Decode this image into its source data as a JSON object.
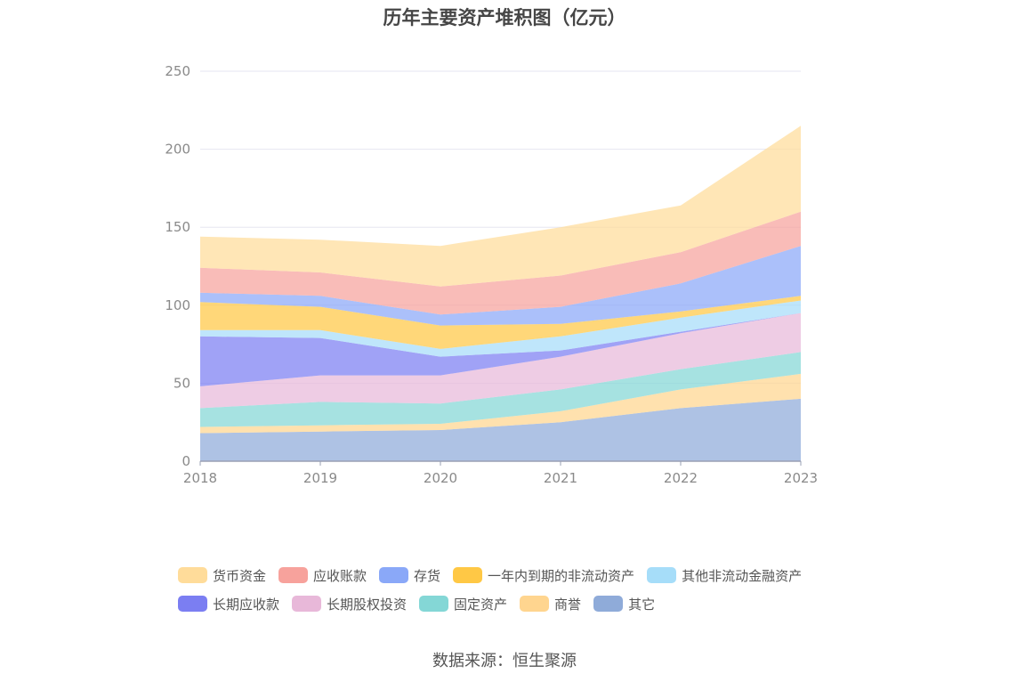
{
  "title": "历年主要资产堆积图（亿元）",
  "source": "数据来源：恒生聚源",
  "chart_data": {
    "type": "area",
    "stacked": true,
    "x": [
      "2018",
      "2019",
      "2020",
      "2021",
      "2022",
      "2023"
    ],
    "ylim": [
      0,
      250
    ],
    "yticks": [
      0,
      50,
      100,
      150,
      200,
      250
    ],
    "grid": true,
    "legend_position": "bottom",
    "series": [
      {
        "name": "其它",
        "color": "#8fabd9",
        "values": [
          18,
          19,
          20,
          25,
          34,
          40
        ]
      },
      {
        "name": "商誉",
        "color": "#ffd58f",
        "values": [
          4,
          4,
          4,
          7,
          12,
          16
        ]
      },
      {
        "name": "固定资产",
        "color": "#84d7d6",
        "values": [
          12,
          15,
          13,
          14,
          13,
          14
        ]
      },
      {
        "name": "长期股权投资",
        "color": "#e8b8d9",
        "values": [
          14,
          17,
          18,
          21,
          23,
          25
        ]
      },
      {
        "name": "长期应收款",
        "color": "#7b7ef2",
        "values": [
          32,
          24,
          12,
          4,
          1,
          0
        ]
      },
      {
        "name": "其他非流动金融资产",
        "color": "#a6ddf9",
        "values": [
          4,
          5,
          5,
          9,
          9,
          8
        ]
      },
      {
        "name": "一年内到期的非流动资产",
        "color": "#ffc845",
        "values": [
          18,
          15,
          15,
          8,
          4,
          3
        ]
      },
      {
        "name": "存货",
        "color": "#8aa8f8",
        "values": [
          6,
          7,
          7,
          11,
          18,
          32
        ]
      },
      {
        "name": "应收账款",
        "color": "#f7a29c",
        "values": [
          16,
          15,
          18,
          20,
          20,
          22
        ]
      },
      {
        "name": "货币资金",
        "color": "#ffdc9a",
        "values": [
          20,
          21,
          26,
          31,
          30,
          55
        ]
      }
    ]
  },
  "legend": [
    [
      {
        "label": "货币资金",
        "color": "#ffdc9a"
      },
      {
        "label": "应收账款",
        "color": "#f7a29c"
      },
      {
        "label": "存货",
        "color": "#8aa8f8"
      },
      {
        "label": "一年内到期的非流动资产",
        "color": "#ffc845"
      },
      {
        "label": "其他非流动金融资产",
        "color": "#a6ddf9"
      }
    ],
    [
      {
        "label": "长期应收款",
        "color": "#7b7ef2"
      },
      {
        "label": "长期股权投资",
        "color": "#e8b8d9"
      },
      {
        "label": "固定资产",
        "color": "#84d7d6"
      },
      {
        "label": "商誉",
        "color": "#ffd58f"
      },
      {
        "label": "其它",
        "color": "#8fabd9"
      }
    ]
  ]
}
